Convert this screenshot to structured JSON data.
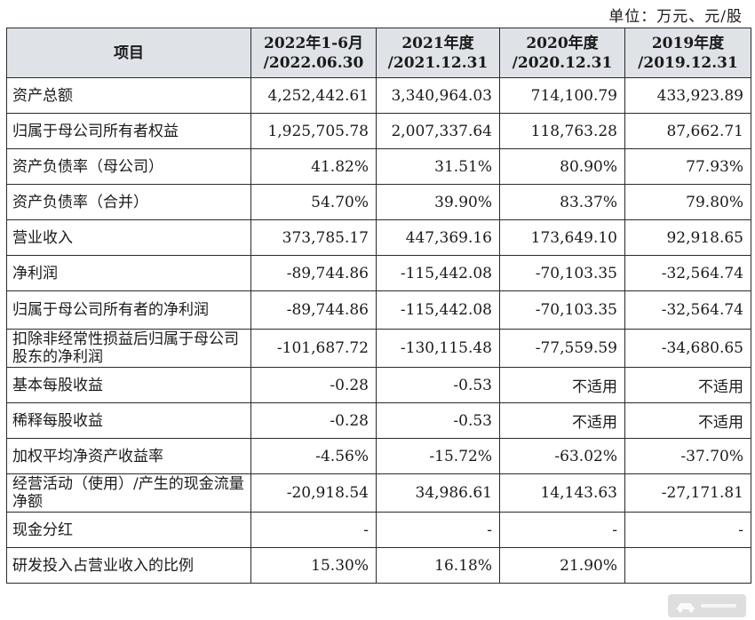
{
  "unit_note": "单位：万元、元/股",
  "headers": [
    {
      "l1": "项目",
      "l2": ""
    },
    {
      "l1": "2022年1-6月",
      "l2": "/2022.06.30"
    },
    {
      "l1": "2021年度",
      "l2": "/2021.12.31"
    },
    {
      "l1": "2020年度",
      "l2": "/2020.12.31"
    },
    {
      "l1": "2019年度",
      "l2": "/2019.12.31"
    }
  ],
  "rows": [
    {
      "label": "资产总额",
      "values": [
        "4,252,442.61",
        "3,340,964.03",
        "714,100.79",
        "433,923.89"
      ]
    },
    {
      "label": "归属于母公司所有者权益",
      "values": [
        "1,925,705.78",
        "2,007,337.64",
        "118,763.28",
        "87,662.71"
      ]
    },
    {
      "label": "资产负债率（母公司）",
      "values": [
        "41.82%",
        "31.51%",
        "80.90%",
        "77.93%"
      ]
    },
    {
      "label": "资产负债率（合并）",
      "values": [
        "54.70%",
        "39.90%",
        "83.37%",
        "79.80%"
      ]
    },
    {
      "label": "营业收入",
      "values": [
        "373,785.17",
        "447,369.16",
        "173,649.10",
        "92,918.65"
      ]
    },
    {
      "label": "净利润",
      "values": [
        "-89,744.86",
        "-115,442.08",
        "-70,103.35",
        "-32,564.74"
      ]
    },
    {
      "label": "归属于母公司所有者的净利润",
      "values": [
        "-89,744.86",
        "-115,442.08",
        "-70,103.35",
        "-32,564.74"
      ]
    },
    {
      "label": "扣除非经常性损益后归属于母公司股东的净利润",
      "values": [
        "-101,687.72",
        "-130,115.48",
        "-77,559.59",
        "-34,680.65"
      ]
    },
    {
      "label": "基本每股收益",
      "values": [
        "-0.28",
        "-0.53",
        "不适用",
        "不适用"
      ]
    },
    {
      "label": "稀释每股收益",
      "values": [
        "-0.28",
        "-0.53",
        "不适用",
        "不适用"
      ]
    },
    {
      "label": "加权平均净资产收益率",
      "values": [
        "-4.56%",
        "-15.72%",
        "-63.02%",
        "-37.70%"
      ]
    },
    {
      "label": "经营活动（使用）/产生的现金流量净额",
      "values": [
        "-20,918.54",
        "34,986.61",
        "14,143.63",
        "-27,171.81"
      ]
    },
    {
      "label": "现金分红",
      "values": [
        "-",
        "-",
        "-",
        "-"
      ]
    },
    {
      "label": "研发投入占营业收入的比例",
      "values": [
        "15.30%",
        "16.18%",
        "21.90%",
        ""
      ]
    }
  ],
  "watermark_icon": "car-logo-watermark"
}
